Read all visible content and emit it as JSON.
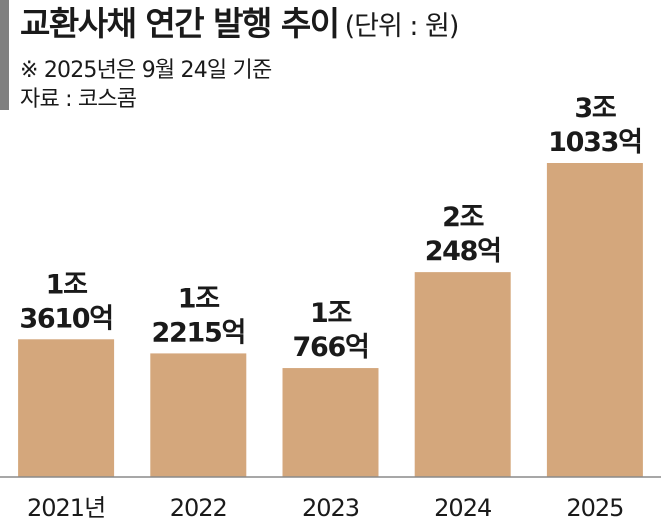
{
  "header": {
    "title": "교환사채 연간 발행 추이",
    "unit": "(단위 : 원)",
    "note": "※ 2025년은 9월 24일 기준",
    "source": "자료 : 코스콤"
  },
  "colors": {
    "bar": "#d4a77c",
    "accent_bar": "#808080",
    "axis": "#8a8a8a"
  },
  "chart_data": {
    "type": "bar",
    "title": "교환사채 연간 발행 추이",
    "unit": "(단위 : 원)",
    "categories": [
      "2021년",
      "2022",
      "2023",
      "2024",
      "2025"
    ],
    "values": [
      1361000000000,
      1221500000000,
      1076600000000,
      2024800000000,
      3103300000000
    ],
    "value_labels": [
      [
        "1조",
        "3610억"
      ],
      [
        "1조",
        "2215억"
      ],
      [
        "1조",
        "766억"
      ],
      [
        "2조",
        "248억"
      ],
      [
        "3조",
        "1033억"
      ]
    ],
    "grid": false,
    "legend": "none"
  }
}
